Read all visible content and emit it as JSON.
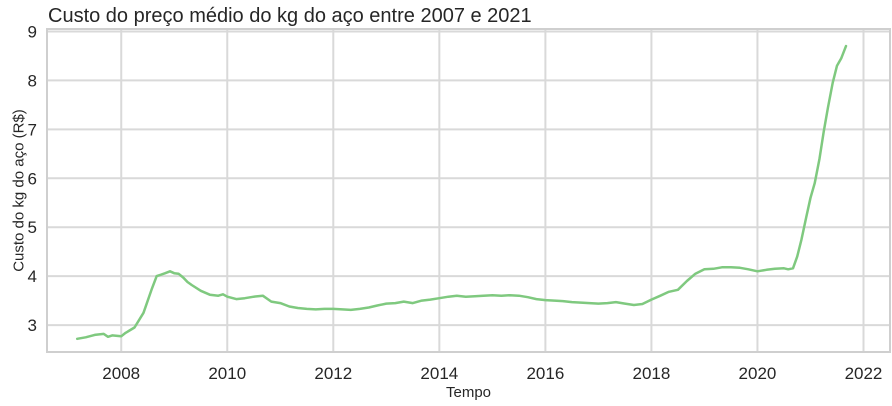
{
  "chart_data": {
    "type": "line",
    "title": "Custo do preço médio do kg do aço entre 2007 e 2021",
    "xlabel": "Tempo",
    "ylabel": "Custo do kg do aço (R$)",
    "xlim": [
      2006.6,
      2022.5
    ],
    "ylim": [
      2.45,
      9.05
    ],
    "x_ticks": [
      2008,
      2010,
      2012,
      2014,
      2016,
      2018,
      2020,
      2022
    ],
    "y_ticks": [
      3,
      4,
      5,
      6,
      7,
      8,
      9
    ],
    "grid": true,
    "line_color": "#7fc97f",
    "series": [
      {
        "x": [
          2007.17,
          2007.33,
          2007.5,
          2007.67,
          2007.75,
          2007.83,
          2008.0,
          2008.08,
          2008.25,
          2008.42,
          2008.58,
          2008.67,
          2008.75,
          2008.83,
          2008.92,
          2009.0,
          2009.08,
          2009.17,
          2009.25,
          2009.33,
          2009.5,
          2009.67,
          2009.83,
          2009.92,
          2010.0,
          2010.17,
          2010.33,
          2010.5,
          2010.67,
          2010.83,
          2011.0,
          2011.17,
          2011.33,
          2011.5,
          2011.67,
          2011.83,
          2012.0,
          2012.17,
          2012.33,
          2012.5,
          2012.67,
          2012.83,
          2013.0,
          2013.17,
          2013.33,
          2013.5,
          2013.67,
          2013.83,
          2014.0,
          2014.17,
          2014.33,
          2014.5,
          2014.67,
          2014.83,
          2015.0,
          2015.17,
          2015.33,
          2015.5,
          2015.67,
          2015.83,
          2016.0,
          2016.17,
          2016.33,
          2016.5,
          2016.67,
          2016.83,
          2017.0,
          2017.17,
          2017.33,
          2017.5,
          2017.67,
          2017.83,
          2018.0,
          2018.17,
          2018.33,
          2018.5,
          2018.67,
          2018.83,
          2019.0,
          2019.17,
          2019.33,
          2019.5,
          2019.67,
          2019.83,
          2020.0,
          2020.17,
          2020.33,
          2020.5,
          2020.58,
          2020.67,
          2020.75,
          2020.83,
          2020.92,
          2021.0,
          2021.08,
          2021.17,
          2021.25,
          2021.33,
          2021.42,
          2021.5,
          2021.58,
          2021.67
        ],
        "y": [
          2.72,
          2.75,
          2.8,
          2.82,
          2.76,
          2.79,
          2.77,
          2.84,
          2.95,
          3.25,
          3.75,
          4.0,
          4.03,
          4.06,
          4.1,
          4.06,
          4.05,
          3.97,
          3.88,
          3.82,
          3.7,
          3.62,
          3.6,
          3.63,
          3.58,
          3.53,
          3.55,
          3.58,
          3.6,
          3.48,
          3.45,
          3.38,
          3.35,
          3.33,
          3.32,
          3.33,
          3.33,
          3.32,
          3.31,
          3.33,
          3.36,
          3.4,
          3.44,
          3.45,
          3.48,
          3.45,
          3.5,
          3.52,
          3.55,
          3.58,
          3.6,
          3.58,
          3.59,
          3.6,
          3.61,
          3.6,
          3.61,
          3.6,
          3.57,
          3.53,
          3.51,
          3.5,
          3.49,
          3.47,
          3.46,
          3.45,
          3.44,
          3.45,
          3.47,
          3.44,
          3.41,
          3.43,
          3.52,
          3.6,
          3.68,
          3.72,
          3.9,
          4.05,
          4.14,
          4.15,
          4.18,
          4.18,
          4.17,
          4.14,
          4.1,
          4.13,
          4.15,
          4.16,
          4.14,
          4.16,
          4.4,
          4.75,
          5.2,
          5.6,
          5.9,
          6.4,
          6.95,
          7.45,
          7.95,
          8.3,
          8.45,
          8.7
        ]
      }
    ]
  }
}
